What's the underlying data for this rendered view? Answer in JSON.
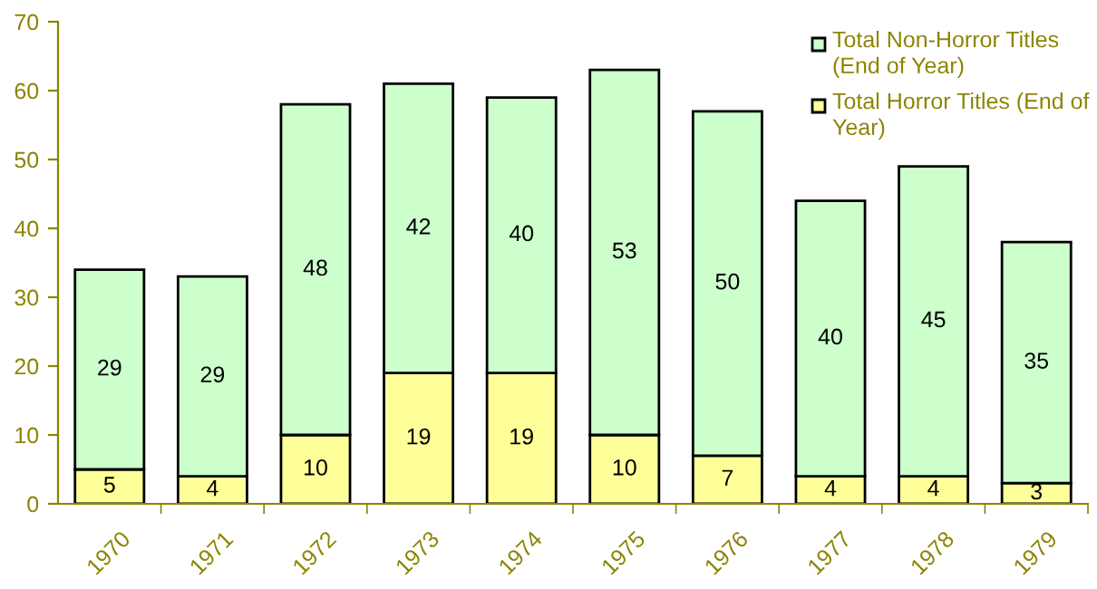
{
  "chart_data": {
    "type": "bar",
    "stacked": true,
    "categories": [
      "1970",
      "1971",
      "1972",
      "1973",
      "1974",
      "1975",
      "1976",
      "1977",
      "1978",
      "1979"
    ],
    "series": [
      {
        "name": "Total Horror Titles (End of Year)",
        "color": "#ffff99",
        "values": [
          5,
          4,
          10,
          19,
          19,
          10,
          7,
          4,
          4,
          3
        ]
      },
      {
        "name": "Total Non-Horror Titles (End of Year)",
        "color": "#ccffcc",
        "values": [
          29,
          29,
          48,
          42,
          40,
          53,
          50,
          40,
          45,
          35
        ]
      }
    ],
    "ylim": [
      0,
      70
    ],
    "yticks": [
      0,
      10,
      20,
      30,
      40,
      50,
      60,
      70
    ],
    "data_labels": true,
    "grid": false,
    "legend": "top right"
  }
}
